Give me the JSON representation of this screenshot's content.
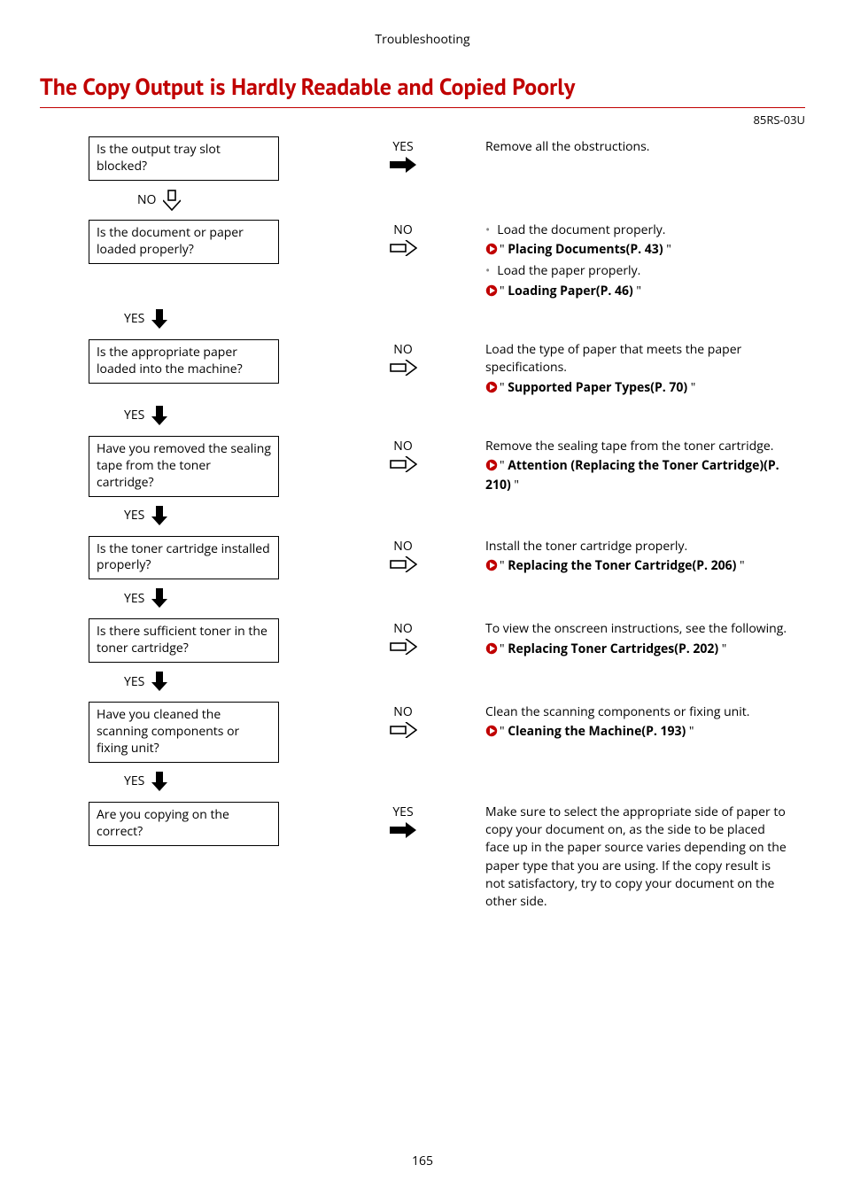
{
  "colors": {
    "accent": "#c00000",
    "text": "#000000",
    "rule": "#c00000",
    "bullet": "#888888"
  },
  "header": "Troubleshooting",
  "title": "The Copy Output is Hardly Readable and Copied Poorly",
  "doc_code": "85RS-03U",
  "page_number": "165",
  "steps": [
    {
      "question": "Is the output tray slot blocked?",
      "mid_label": "YES",
      "mid_arrow": "solid-right",
      "trans_label": "NO",
      "trans_arrow": "down-open",
      "answer": [
        {
          "type": "text",
          "text": "Remove all the obstructions."
        }
      ]
    },
    {
      "question": "Is the document or paper loaded properly?",
      "mid_label": "NO",
      "mid_arrow": "open-right",
      "trans_label": "YES",
      "trans_arrow": "down-solid",
      "answer": [
        {
          "type": "bullet",
          "text": "Load the document properly."
        },
        {
          "type": "link",
          "text": "Placing Documents(P. 43)"
        },
        {
          "type": "bullet",
          "text": "Load the paper properly."
        },
        {
          "type": "link",
          "text": "Loading Paper(P. 46)"
        }
      ]
    },
    {
      "question": "Is the appropriate paper loaded into the machine?",
      "mid_label": "NO",
      "mid_arrow": "open-right",
      "trans_label": "YES",
      "trans_arrow": "down-solid",
      "answer": [
        {
          "type": "text",
          "text": "Load the type of paper that meets the paper specifications."
        },
        {
          "type": "link",
          "text": "Supported Paper Types(P. 70)"
        }
      ]
    },
    {
      "question": "Have you removed the sealing tape from the toner cartridge?",
      "mid_label": "NO",
      "mid_arrow": "open-right",
      "trans_label": "YES",
      "trans_arrow": "down-solid",
      "answer": [
        {
          "type": "text",
          "text": "Remove the sealing tape from the toner cartridge."
        },
        {
          "type": "link",
          "text": "Attention (Replacing the Toner Cartridge)(P. 210)"
        }
      ]
    },
    {
      "question": "Is the toner cartridge installed properly?",
      "mid_label": "NO",
      "mid_arrow": "open-right",
      "trans_label": "YES",
      "trans_arrow": "down-solid",
      "answer": [
        {
          "type": "text",
          "text": "Install the toner cartridge properly."
        },
        {
          "type": "link",
          "text": "Replacing the Toner Cartridge(P. 206)"
        }
      ]
    },
    {
      "question": "Is there sufficient toner in the toner cartridge?",
      "mid_label": "NO",
      "mid_arrow": "open-right",
      "trans_label": "YES",
      "trans_arrow": "down-solid",
      "answer": [
        {
          "type": "text",
          "text": "To view the onscreen instructions, see the following."
        },
        {
          "type": "link",
          "text": "Replacing Toner Cartridges(P. 202)"
        }
      ]
    },
    {
      "question": "Have you cleaned the scanning components or fixing unit?",
      "mid_label": "NO",
      "mid_arrow": "open-right",
      "trans_label": "YES",
      "trans_arrow": "down-solid",
      "answer": [
        {
          "type": "text",
          "text": "Clean the scanning components or fixing unit."
        },
        {
          "type": "link",
          "text": "Cleaning the Machine(P. 193)"
        }
      ]
    },
    {
      "question": "Are you copying on the correct?",
      "mid_label": "YES",
      "mid_arrow": "solid-right",
      "trans_label": "",
      "trans_arrow": "",
      "answer": [
        {
          "type": "text",
          "text": "Make sure to select the appropriate side of paper to copy your document on, as the side to be placed face up in the paper source varies depending on the paper type that you are using. If the copy result is not satisfactory, try to copy your document on the other side."
        }
      ]
    }
  ]
}
